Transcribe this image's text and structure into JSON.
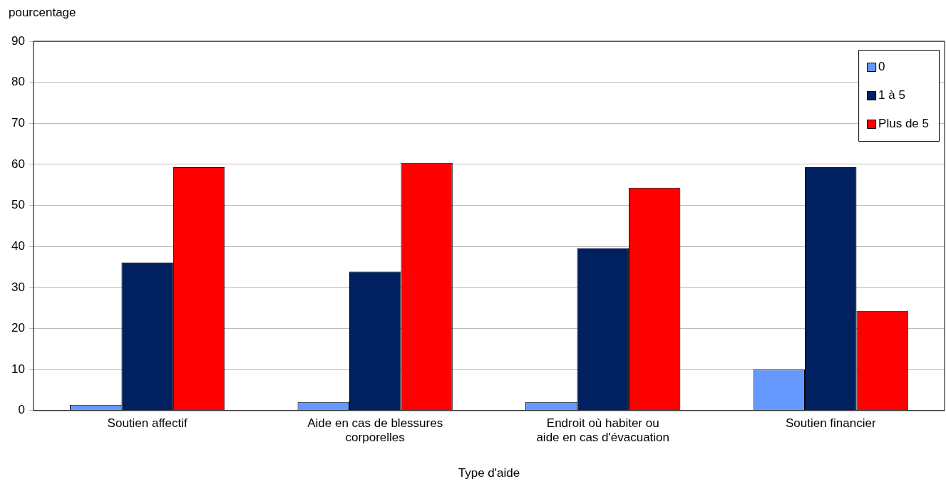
{
  "chart_data": {
    "type": "bar",
    "xlabel": "Type d'aide",
    "ylabel": "pourcentage",
    "categories": [
      "Soutien affectif",
      "Aide en cas de blessures corporelles",
      "Endroit où habiter ou aide en cas d'évacuation",
      "Soutien financier"
    ],
    "series": [
      {
        "name": "0",
        "color": "#6699ff",
        "values": [
          1.4,
          2.1,
          2.1,
          10
        ]
      },
      {
        "name": "1 à 5",
        "color": "#002060",
        "values": [
          36.1,
          33.9,
          39.6,
          59.3
        ]
      },
      {
        "name": "Plus de 5",
        "color": "#ff0000",
        "values": [
          59.3,
          60.4,
          54.3,
          24.3
        ]
      }
    ],
    "ylim": [
      0,
      90
    ],
    "yticks": [
      0,
      10,
      20,
      30,
      40,
      50,
      60,
      70,
      80,
      90
    ],
    "grid": "y",
    "legend": "top right"
  }
}
